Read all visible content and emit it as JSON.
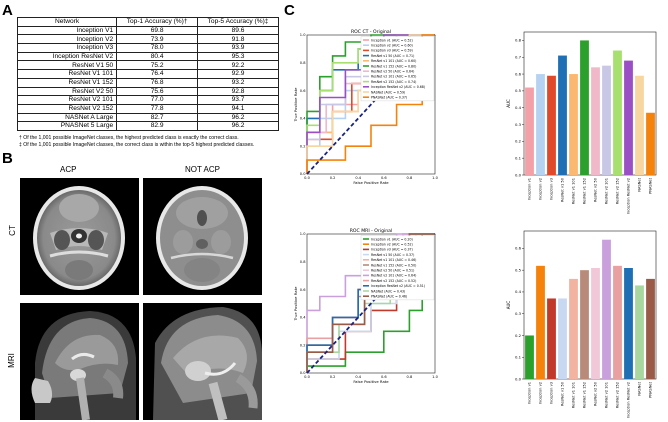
{
  "panels": {
    "a": "A",
    "b": "B",
    "c": "C"
  },
  "table": {
    "headers": [
      "Network",
      "Top-1 Accuracy (%)†",
      "Top-5 Accuracy (%)‡"
    ],
    "rows": [
      [
        "Inception V1",
        "69.8",
        "89.6"
      ],
      [
        "Inception V2",
        "73.9",
        "91.8"
      ],
      [
        "Inception V3",
        "78.0",
        "93.9"
      ],
      [
        "Inception ResNet V2",
        "80.4",
        "95.3"
      ],
      [
        "ResNet V1 50",
        "75.2",
        "92.2"
      ],
      [
        "ResNet V1 101",
        "76.4",
        "92.9"
      ],
      [
        "ResNet V1 152",
        "76.8",
        "93.2"
      ],
      [
        "ResNet V2 50",
        "75.6",
        "92.8"
      ],
      [
        "ResNet V2 101",
        "77.0",
        "93.7"
      ],
      [
        "ResNet V2 152",
        "77.8",
        "94.1"
      ],
      [
        "NASNet A Large",
        "82.7",
        "96.2"
      ],
      [
        "PNASNet 5 Large",
        "82.9",
        "96.2"
      ]
    ],
    "notes": [
      "† Of the 1,001 possible ImageNet classes, the highest predicted class is exactly the correct class.",
      "‡ Of the 1,001 possible ImageNet classes, the correct class is within the top-5 highest predicted classes."
    ]
  },
  "mri_panel": {
    "col1": "ACP",
    "col2": "NOT ACP",
    "row1": "CT",
    "row2": "MRI"
  },
  "chart_data": [
    {
      "type": "line",
      "title": "ROC CT - Original",
      "xlabel": "False Positive Rate",
      "ylabel": "True Positive Rate",
      "xlim": [
        0,
        1
      ],
      "ylim": [
        0,
        1
      ],
      "ticks": [
        "0.0",
        "0.2",
        "0.4",
        "0.6",
        "0.8",
        "1.0"
      ],
      "series": [
        {
          "name": "Inception v1 (AUC = 0.52)",
          "color": "#f4a0a8",
          "x": [
            0,
            0,
            0.2,
            0.2,
            0.4,
            0.4,
            0.6,
            0.6,
            0.8,
            0.8,
            1
          ],
          "y": [
            0,
            0.3,
            0.3,
            0.5,
            0.5,
            0.6,
            0.6,
            0.8,
            0.8,
            1,
            1
          ]
        },
        {
          "name": "Inception v2 (AUC = 0.60)",
          "color": "#b6d2f2",
          "x": [
            0,
            0,
            0.1,
            0.1,
            0.3,
            0.3,
            0.5,
            0.5,
            0.7,
            0.7,
            1
          ],
          "y": [
            0,
            0.2,
            0.2,
            0.4,
            0.4,
            0.6,
            0.6,
            0.8,
            0.8,
            1,
            1
          ]
        },
        {
          "name": "Inception v3 (AUC = 0.59)",
          "color": "#e04a2a",
          "x": [
            0,
            0,
            0.2,
            0.2,
            0.35,
            0.35,
            0.55,
            0.55,
            0.8,
            0.8,
            1
          ],
          "y": [
            0,
            0.25,
            0.25,
            0.45,
            0.45,
            0.65,
            0.65,
            0.8,
            0.8,
            1,
            1
          ]
        },
        {
          "name": "ResNet v1 50 (AUC = 0.71)",
          "color": "#1f6fb4",
          "x": [
            0,
            0,
            0.1,
            0.1,
            0.2,
            0.2,
            0.4,
            0.4,
            0.6,
            0.6,
            1
          ],
          "y": [
            0,
            0.4,
            0.4,
            0.6,
            0.6,
            0.75,
            0.75,
            0.9,
            0.9,
            1,
            1
          ]
        },
        {
          "name": "ResNet v1 101 (AUC = 0.60)",
          "color": "#fbb870",
          "x": [
            0,
            0,
            0.2,
            0.2,
            0.4,
            0.4,
            0.55,
            0.55,
            0.7,
            0.7,
            1
          ],
          "y": [
            0,
            0.3,
            0.3,
            0.45,
            0.45,
            0.6,
            0.6,
            0.8,
            0.8,
            1,
            1
          ]
        },
        {
          "name": "ResNet v1 152 (AUC = 0.80)",
          "color": "#2ca02c",
          "x": [
            0,
            0,
            0.1,
            0.1,
            0.2,
            0.2,
            0.3,
            0.3,
            0.5,
            0.5,
            1
          ],
          "y": [
            0,
            0.45,
            0.45,
            0.7,
            0.7,
            0.85,
            0.85,
            0.95,
            0.95,
            1,
            1
          ]
        },
        {
          "name": "ResNet v2 50 (AUC = 0.64)",
          "color": "#f0b8c8",
          "x": [
            0,
            0,
            0.15,
            0.15,
            0.3,
            0.3,
            0.5,
            0.5,
            0.7,
            0.7,
            1
          ],
          "y": [
            0,
            0.3,
            0.3,
            0.5,
            0.5,
            0.65,
            0.65,
            0.8,
            0.8,
            1,
            1
          ]
        },
        {
          "name": "ResNet v2 101 (AUC = 0.65)",
          "color": "#c8c8e6",
          "x": [
            0,
            0,
            0.1,
            0.1,
            0.3,
            0.3,
            0.5,
            0.5,
            0.7,
            0.7,
            1
          ],
          "y": [
            0,
            0.25,
            0.25,
            0.5,
            0.5,
            0.7,
            0.7,
            0.85,
            0.85,
            1,
            1
          ]
        },
        {
          "name": "ResNet v2 152 (AUC = 0.74)",
          "color": "#a8e070",
          "x": [
            0,
            0,
            0.1,
            0.1,
            0.2,
            0.2,
            0.4,
            0.4,
            0.6,
            0.6,
            1
          ],
          "y": [
            0,
            0.35,
            0.35,
            0.6,
            0.6,
            0.8,
            0.8,
            0.9,
            0.9,
            1,
            1
          ]
        },
        {
          "name": "Inception ResNet v2 (AUC = 0.68)",
          "color": "#9a4fc4",
          "x": [
            0,
            0,
            0.1,
            0.1,
            0.3,
            0.3,
            0.5,
            0.5,
            0.6,
            0.6,
            1
          ],
          "y": [
            0,
            0.3,
            0.3,
            0.55,
            0.55,
            0.75,
            0.75,
            0.85,
            0.85,
            1,
            1
          ]
        },
        {
          "name": "NASNet (AUC = 0.59)",
          "color": "#f7d6a2",
          "x": [
            0,
            0,
            0.2,
            0.2,
            0.4,
            0.4,
            0.6,
            0.6,
            0.8,
            0.8,
            1
          ],
          "y": [
            0,
            0.2,
            0.2,
            0.45,
            0.45,
            0.6,
            0.6,
            0.75,
            0.75,
            1,
            1
          ]
        },
        {
          "name": "PNASNet (AUC = 0.37)",
          "color": "#f5820a",
          "x": [
            0,
            0,
            0.3,
            0.3,
            0.5,
            0.5,
            0.7,
            0.7,
            0.9,
            0.9,
            1
          ],
          "y": [
            0,
            0.1,
            0.1,
            0.2,
            0.2,
            0.35,
            0.35,
            0.5,
            0.5,
            1,
            1
          ]
        }
      ]
    },
    {
      "type": "bar",
      "ylabel": "AUC",
      "ylim": [
        0,
        0.85
      ],
      "yticks": [
        "0.0",
        "0.1",
        "0.2",
        "0.3",
        "0.4",
        "0.5",
        "0.6",
        "0.7",
        "0.8"
      ],
      "categories": [
        "Inception v1",
        "Inception v2",
        "Inception v3",
        "ResNet v1 50",
        "ResNet v1 101",
        "ResNet v1 152",
        "ResNet v2 50",
        "ResNet v2 101",
        "ResNet v2 152",
        "Inception ResNet v2",
        "NASNet",
        "PNASNet"
      ],
      "values": [
        0.52,
        0.6,
        0.59,
        0.71,
        0.6,
        0.8,
        0.64,
        0.65,
        0.74,
        0.68,
        0.59,
        0.37
      ],
      "colors": [
        "#f4a0a8",
        "#b6d2f2",
        "#e04a2a",
        "#1f6fb4",
        "#fbb870",
        "#2ca02c",
        "#f0b8c8",
        "#c8c8e6",
        "#a8e070",
        "#9a4fc4",
        "#f7d6a2",
        "#f5820a"
      ]
    },
    {
      "type": "line",
      "title": "ROC MRI - Original",
      "xlabel": "False Positive Rate",
      "ylabel": "True Positive Rate",
      "xlim": [
        0,
        1
      ],
      "ylim": [
        0,
        1
      ],
      "ticks": [
        "0.0",
        "0.2",
        "0.4",
        "0.6",
        "0.8",
        "1.0"
      ],
      "series": [
        {
          "name": "Inception v1 (AUC = 0.20)",
          "color": "#2ca02c",
          "x": [
            0,
            0,
            0.3,
            0.3,
            0.6,
            0.6,
            0.8,
            0.8,
            0.9,
            0.9,
            1
          ],
          "y": [
            0,
            0.05,
            0.05,
            0.15,
            0.15,
            0.3,
            0.3,
            0.45,
            0.45,
            1,
            1
          ]
        },
        {
          "name": "Inception v2 (AUC = 0.52)",
          "color": "#f5820a",
          "x": [
            0,
            0,
            0.2,
            0.2,
            0.4,
            0.4,
            0.6,
            0.6,
            0.8,
            0.8,
            1
          ],
          "y": [
            0,
            0.2,
            0.2,
            0.4,
            0.4,
            0.6,
            0.6,
            0.8,
            0.8,
            1,
            1
          ]
        },
        {
          "name": "Inception v3 (AUC = 0.37)",
          "color": "#c0392b",
          "x": [
            0,
            0,
            0.3,
            0.3,
            0.5,
            0.5,
            0.7,
            0.7,
            0.85,
            0.85,
            1
          ],
          "y": [
            0,
            0.1,
            0.1,
            0.3,
            0.3,
            0.45,
            0.45,
            0.65,
            0.65,
            1,
            1
          ]
        },
        {
          "name": "ResNet v1 50 (AUC = 0.37)",
          "color": "#c8d8f0",
          "x": [
            0,
            0,
            0.25,
            0.25,
            0.5,
            0.5,
            0.7,
            0.7,
            0.85,
            0.85,
            1
          ],
          "y": [
            0,
            0.1,
            0.1,
            0.3,
            0.3,
            0.5,
            0.5,
            0.65,
            0.65,
            1,
            1
          ]
        },
        {
          "name": "ResNet v1 101 (AUC = 0.46)",
          "color": "#f2b4a0",
          "x": [
            0,
            0,
            0.2,
            0.2,
            0.45,
            0.45,
            0.6,
            0.6,
            0.8,
            0.8,
            1
          ],
          "y": [
            0,
            0.15,
            0.15,
            0.35,
            0.35,
            0.55,
            0.55,
            0.75,
            0.75,
            1,
            1
          ]
        },
        {
          "name": "ResNet v1 152 (AUC = 0.50)",
          "color": "#b88a7a",
          "x": [
            0,
            0,
            0.2,
            0.2,
            0.4,
            0.4,
            0.6,
            0.6,
            0.75,
            0.75,
            1
          ],
          "y": [
            0,
            0.2,
            0.2,
            0.4,
            0.4,
            0.55,
            0.55,
            0.75,
            0.75,
            1,
            1
          ]
        },
        {
          "name": "ResNet v2 50 (AUC = 0.51)",
          "color": "#f0c8d8",
          "x": [
            0,
            0,
            0.2,
            0.2,
            0.4,
            0.4,
            0.55,
            0.55,
            0.75,
            0.75,
            1
          ],
          "y": [
            0,
            0.2,
            0.2,
            0.4,
            0.4,
            0.6,
            0.6,
            0.75,
            0.75,
            1,
            1
          ]
        },
        {
          "name": "ResNet v2 101 (AUC = 0.64)",
          "color": "#c9a0dc",
          "x": [
            0,
            0,
            0.1,
            0.1,
            0.3,
            0.3,
            0.5,
            0.5,
            0.7,
            0.7,
            1
          ],
          "y": [
            0,
            0.45,
            0.45,
            0.55,
            0.55,
            0.7,
            0.7,
            0.85,
            0.85,
            1,
            1
          ]
        },
        {
          "name": "ResNet v2 152 (AUC = 0.52)",
          "color": "#e8a0a0",
          "x": [
            0,
            0,
            0.2,
            0.2,
            0.4,
            0.4,
            0.6,
            0.6,
            0.8,
            0.8,
            1
          ],
          "y": [
            0,
            0.25,
            0.25,
            0.4,
            0.4,
            0.6,
            0.6,
            0.8,
            0.8,
            1,
            1
          ]
        },
        {
          "name": "Inception ResNet v2 (AUC = 0.51)",
          "color": "#1f6fb4",
          "x": [
            0,
            0,
            0.2,
            0.2,
            0.4,
            0.4,
            0.6,
            0.6,
            0.8,
            0.8,
            1
          ],
          "y": [
            0,
            0.2,
            0.2,
            0.4,
            0.4,
            0.6,
            0.6,
            0.75,
            0.75,
            1,
            1
          ]
        },
        {
          "name": "NASNet (AUC = 0.43)",
          "color": "#a8d8a0",
          "x": [
            0,
            0,
            0.25,
            0.25,
            0.45,
            0.45,
            0.65,
            0.65,
            0.8,
            0.8,
            1
          ],
          "y": [
            0,
            0.15,
            0.15,
            0.35,
            0.35,
            0.5,
            0.5,
            0.7,
            0.7,
            1,
            1
          ]
        },
        {
          "name": "PNASNet (AUC = 0.46)",
          "color": "#9a5a48",
          "x": [
            0,
            0,
            0.2,
            0.2,
            0.45,
            0.45,
            0.65,
            0.65,
            0.8,
            0.8,
            1
          ],
          "y": [
            0,
            0.15,
            0.15,
            0.35,
            0.35,
            0.55,
            0.55,
            0.7,
            0.7,
            1,
            1
          ]
        }
      ]
    },
    {
      "type": "bar",
      "ylabel": "AUC",
      "ylim": [
        0,
        0.68
      ],
      "yticks": [
        "0.0",
        "0.1",
        "0.2",
        "0.3",
        "0.4",
        "0.5",
        "0.6"
      ],
      "categories": [
        "Inception v1",
        "Inception v2",
        "Inception v3",
        "ResNet v1 50",
        "ResNet v1 101",
        "ResNet v1 152",
        "ResNet v2 50",
        "ResNet v2 101",
        "ResNet v2 152",
        "Inception ResNet v2",
        "NASNet",
        "PNASNet"
      ],
      "values": [
        0.2,
        0.52,
        0.37,
        0.37,
        0.46,
        0.5,
        0.51,
        0.64,
        0.52,
        0.51,
        0.43,
        0.46
      ],
      "colors": [
        "#2ca02c",
        "#f5820a",
        "#c0392b",
        "#c8d8f0",
        "#f2b4a0",
        "#b88a7a",
        "#f0c8d8",
        "#c9a0dc",
        "#e8a0a0",
        "#1f6fb4",
        "#a8d8a0",
        "#9a5a48"
      ]
    }
  ]
}
